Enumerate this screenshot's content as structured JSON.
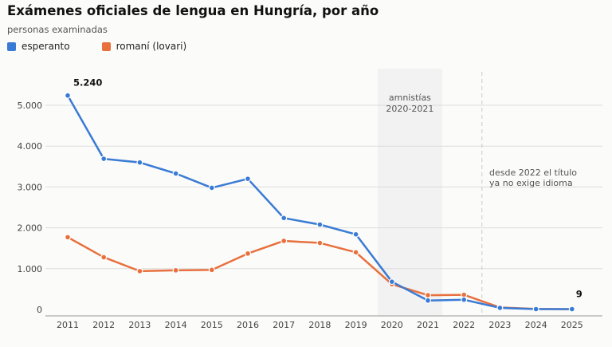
{
  "chart_data": {
    "type": "line",
    "title": "Exámenes oficiales de lengua en Hungría, por año",
    "subtitle": "personas examinadas",
    "x": [
      "2011",
      "2012",
      "2013",
      "2014",
      "2015",
      "2016",
      "2017",
      "2018",
      "2019",
      "2020",
      "2021",
      "2022",
      "2023",
      "2024",
      "2025"
    ],
    "yticks": [
      "0",
      "1.000",
      "2.000",
      "3.000",
      "4.000",
      "5.000"
    ],
    "ylim": [
      0,
      5500
    ],
    "grid": true,
    "legend_position": "top-left",
    "series": [
      {
        "name": "esperanto",
        "color": "#3a7bd5",
        "values": [
          5240,
          3690,
          3600,
          3330,
          2980,
          3200,
          2240,
          2080,
          1840,
          680,
          220,
          240,
          40,
          10,
          9
        ]
      },
      {
        "name": "romaní (lovari)",
        "color": "#e8703e",
        "values": [
          1770,
          1280,
          940,
          960,
          970,
          1370,
          1680,
          1630,
          1400,
          620,
          350,
          360,
          50,
          15,
          8
        ]
      }
    ],
    "annotations": {
      "shade_label_1": "amnistías",
      "shade_label_2": "2020-2021",
      "note_1": "desde 2022 el título",
      "note_2": "ya no exige idioma",
      "first_value_label": "5.240",
      "last_value_label": "9"
    }
  }
}
